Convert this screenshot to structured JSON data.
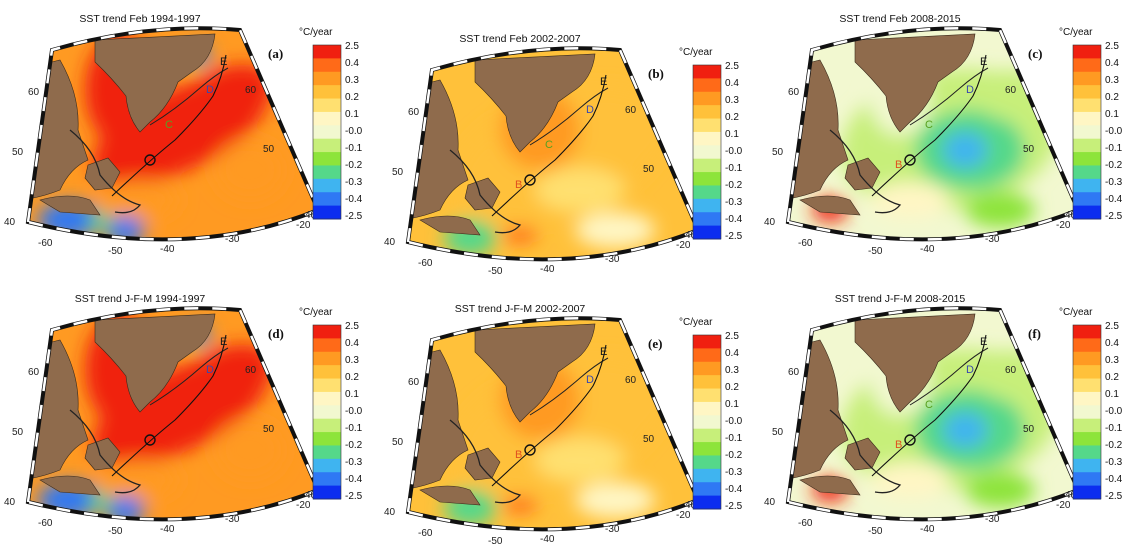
{
  "colors": {
    "scale": [
      "#0c2df0",
      "#2f78f4",
      "#3fb4f0",
      "#55d88a",
      "#8de43b",
      "#c7ef7a",
      "#f2f8d0",
      "#fff6c4",
      "#ffe070",
      "#ffc13a",
      "#ff9a22",
      "#ff6a18",
      "#f02010"
    ],
    "land": "#8f6b4c",
    "section_B": "#e05020",
    "section_C": "#58a020",
    "section_D": "#3848b0",
    "section_E": "#1a1a1a"
  },
  "colorbar": {
    "unit_label": "°C/year",
    "tick_labels": [
      "2.5",
      "0.4",
      "0.3",
      "0.2",
      "0.1",
      "-0.0",
      "-0.1",
      "-0.2",
      "-0.3",
      "-0.4",
      "-2.5"
    ]
  },
  "map": {
    "lat_labels_left": [
      "60",
      "50",
      "40"
    ],
    "lat_labels_right": [
      "60",
      "50",
      "40"
    ],
    "lon_labels": [
      "-60",
      "-50",
      "-40",
      "-30",
      "-20"
    ]
  },
  "chart_data": [
    {
      "type": "heatmap",
      "title": "SST trend Feb 1994-1997",
      "panel_label": "(a)",
      "colorbar_range": [
        -2.5,
        2.5
      ],
      "units": "°C/year",
      "dominant_trend": "warming",
      "section_labels": [
        "D",
        "E",
        "C"
      ]
    },
    {
      "type": "heatmap",
      "title": "SST trend Feb 2002-2007",
      "panel_label": "(b)",
      "colorbar_range": [
        -2.5,
        2.5
      ],
      "units": "°C/year",
      "dominant_trend": "weak warming",
      "section_labels": [
        "E",
        "D",
        "C",
        "B"
      ]
    },
    {
      "type": "heatmap",
      "title": "SST trend Feb 2008-2015",
      "panel_label": "(c)",
      "colorbar_range": [
        -2.5,
        2.5
      ],
      "units": "°C/year",
      "dominant_trend": "cooling",
      "section_labels": [
        "E",
        "D",
        "C",
        "B"
      ]
    },
    {
      "type": "heatmap",
      "title": "SST trend J-F-M 1994-1997",
      "panel_label": "(d)",
      "colorbar_range": [
        -2.5,
        2.5
      ],
      "units": "°C/year",
      "dominant_trend": "warming",
      "section_labels": [
        "D",
        "E"
      ]
    },
    {
      "type": "heatmap",
      "title": "SST trend J-F-M 2002-2007",
      "panel_label": "(e)",
      "colorbar_range": [
        -2.5,
        2.5
      ],
      "units": "°C/year",
      "dominant_trend": "weak warming",
      "section_labels": [
        "E",
        "D",
        "B"
      ]
    },
    {
      "type": "heatmap",
      "title": "SST trend J-F-M 2008-2015",
      "panel_label": "(f)",
      "colorbar_range": [
        -2.5,
        2.5
      ],
      "units": "°C/year",
      "dominant_trend": "cooling",
      "section_labels": [
        "E",
        "D",
        "C",
        "B"
      ]
    }
  ]
}
